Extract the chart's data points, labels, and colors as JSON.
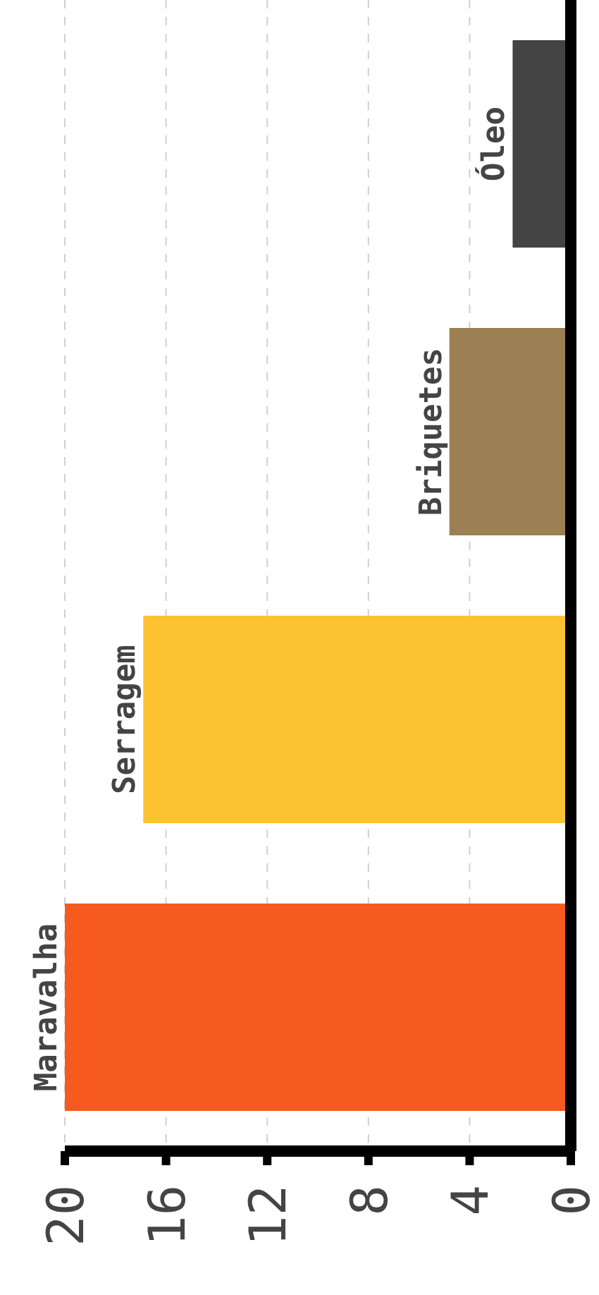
{
  "chart_data": {
    "type": "bar",
    "orientation": "horizontal",
    "categories": [
      "Óleo",
      "Briquetes",
      "Serragem",
      "Maravalha"
    ],
    "values": [
      2.3,
      4.8,
      16.9,
      20
    ],
    "colors": [
      "#444444",
      "#9c8054",
      "#fdc232",
      "#f75a1f"
    ],
    "xlim": [
      20,
      0
    ],
    "xticks": [
      20,
      16,
      12,
      8,
      4,
      0
    ],
    "grid": "x"
  }
}
